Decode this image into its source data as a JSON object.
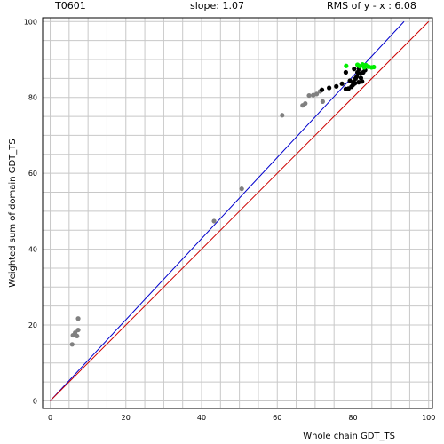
{
  "header": {
    "target": "T0601",
    "slope": "slope: 1.07",
    "rms": "RMS of  y - x : 6.08"
  },
  "chart_data": {
    "type": "scatter",
    "xlabel": "Whole chain GDT_TS",
    "ylabel": "Weighted sum of domain GDT_TS",
    "xlim": [
      -2,
      101
    ],
    "ylim": [
      -2,
      101
    ],
    "xticks": [
      0,
      20,
      40,
      60,
      80,
      100
    ],
    "yticks": [
      0,
      20,
      40,
      60,
      80,
      100
    ],
    "grid": true,
    "colors": {
      "gray": "#808080",
      "black": "#000000",
      "green": "#00ee00",
      "fit_line": "#0000cc",
      "identity_line": "#cc0000",
      "grid": "#c8c8c8"
    },
    "lines": [
      {
        "kind": "fit",
        "color": "fit_line",
        "x": [
          0,
          93.5
        ],
        "y": [
          0,
          100
        ]
      },
      {
        "kind": "identity",
        "color": "identity_line",
        "x": [
          0,
          100
        ],
        "y": [
          0,
          100
        ]
      }
    ],
    "series": [
      {
        "color": "gray",
        "points": [
          [
            5.8,
            14.9
          ],
          [
            6.0,
            17.3
          ],
          [
            6.6,
            18.0
          ],
          [
            7.1,
            17.1
          ],
          [
            7.4,
            18.7
          ],
          [
            7.4,
            21.7
          ],
          [
            43.3,
            47.4
          ],
          [
            50.6,
            55.9
          ],
          [
            61.3,
            75.3
          ],
          [
            66.7,
            77.9
          ],
          [
            67.4,
            78.4
          ],
          [
            68.4,
            80.5
          ],
          [
            69.5,
            80.6
          ],
          [
            70.4,
            80.9
          ],
          [
            71.3,
            81.6
          ],
          [
            72.0,
            78.9
          ]
        ]
      },
      {
        "color": "black",
        "points": [
          [
            71.8,
            82.0
          ],
          [
            73.7,
            82.5
          ],
          [
            75.6,
            82.9
          ],
          [
            77.1,
            83.6
          ],
          [
            78.1,
            82.2
          ],
          [
            78.8,
            82.3
          ],
          [
            78.1,
            86.6
          ],
          [
            79.2,
            84.4
          ],
          [
            79.6,
            82.8
          ],
          [
            80.0,
            83.3
          ],
          [
            80.2,
            84.1
          ],
          [
            80.5,
            83.7
          ],
          [
            80.7,
            85.0
          ],
          [
            81.0,
            85.5
          ],
          [
            81.2,
            86.6
          ],
          [
            81.5,
            84.0
          ],
          [
            81.6,
            87.5
          ],
          [
            81.9,
            86.3
          ],
          [
            82.1,
            85.1
          ],
          [
            82.4,
            84.2
          ],
          [
            82.7,
            86.6
          ],
          [
            83.2,
            87.2
          ],
          [
            80.3,
            87.5
          ]
        ]
      },
      {
        "color": "green",
        "points": [
          [
            78.2,
            88.3
          ],
          [
            81.2,
            88.6
          ],
          [
            81.8,
            88.2
          ],
          [
            82.5,
            88.7
          ],
          [
            83.0,
            87.9
          ],
          [
            83.4,
            88.5
          ],
          [
            84.1,
            88.1
          ],
          [
            84.9,
            87.9
          ],
          [
            85.5,
            88.0
          ]
        ]
      }
    ]
  }
}
